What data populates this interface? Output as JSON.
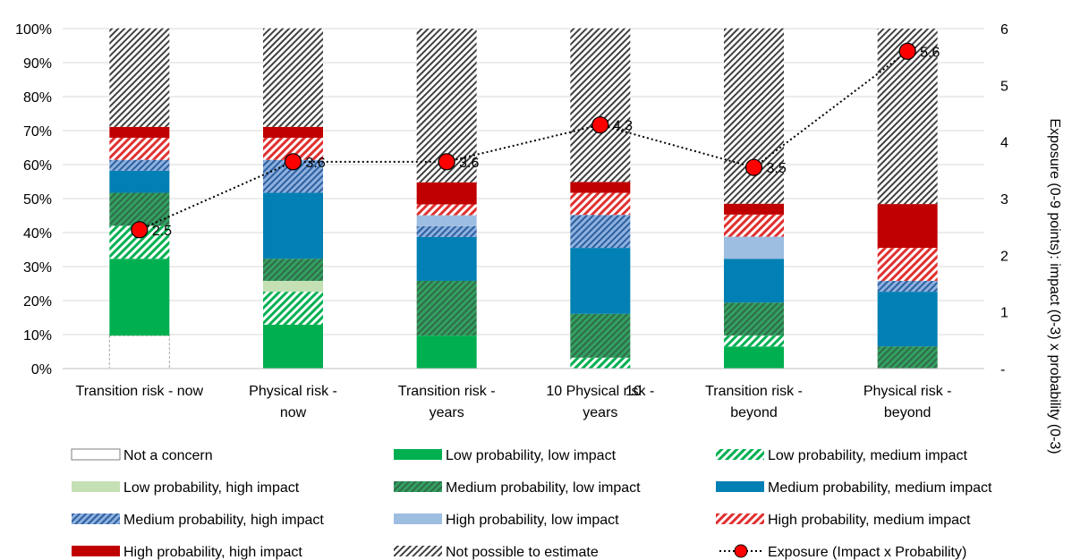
{
  "chart_data": {
    "type": "bar",
    "stacked": true,
    "categories": [
      [
        "Transition risk - now"
      ],
      [
        "Physical risk -",
        "now"
      ],
      [
        "Transition risk -",
        "years"
      ],
      [
        "10 Physical risk -",
        "years"
      ],
      [
        "Transition risk -",
        "beyond"
      ],
      [
        "Physical risk -",
        "beyond"
      ]
    ],
    "stray_label": "10",
    "ylim_left": [
      0,
      100
    ],
    "left_ticks": [
      "0%",
      "10%",
      "20%",
      "30%",
      "40%",
      "50%",
      "60%",
      "70%",
      "80%",
      "90%",
      "100%"
    ],
    "ylim_right": [
      0,
      6
    ],
    "right_ticks": [
      "-",
      "1",
      "2",
      "3",
      "4",
      "5",
      "6"
    ],
    "ylabel_right": "Exposure (0-9 points): impact (0-3) x probability (0-3)",
    "gridlines": true,
    "legend_position": "bottom",
    "series": [
      {
        "name": "Not a concern",
        "color": "#ffffff",
        "pattern": "none",
        "values": [
          9.7,
          0,
          0,
          0,
          0,
          0
        ]
      },
      {
        "name": "Low probability, low impact",
        "color": "#00b050",
        "pattern": "solid",
        "values": [
          22.6,
          12.9,
          9.7,
          0,
          6.5,
          0
        ]
      },
      {
        "name": "Low probability, medium impact",
        "color": "#00b050",
        "pattern": "hatch",
        "values": [
          9.7,
          9.7,
          0,
          3.2,
          3.2,
          0
        ]
      },
      {
        "name": "Low probability, high impact",
        "color": "#c5e0b4",
        "pattern": "solid",
        "values": [
          0,
          3.2,
          0,
          0,
          0,
          0
        ]
      },
      {
        "name": "Medium probability, low impact",
        "color": "#33a060",
        "pattern": "hatch-dense",
        "values": [
          9.7,
          6.5,
          16.1,
          12.9,
          9.7,
          6.5
        ]
      },
      {
        "name": "Medium probability, medium impact",
        "color": "#0080b4",
        "pattern": "solid",
        "values": [
          6.5,
          19.4,
          12.9,
          19.4,
          12.9,
          16.1
        ]
      },
      {
        "name": "Medium probability, high impact",
        "color": "#4a86c6",
        "pattern": "hatch-dense",
        "values": [
          3.2,
          9.7,
          3.2,
          9.7,
          0,
          3.2
        ]
      },
      {
        "name": "High probability, low impact",
        "color": "#9dbde1",
        "pattern": "solid",
        "values": [
          0,
          0,
          3.2,
          0,
          6.5,
          0
        ]
      },
      {
        "name": "High probability, medium impact",
        "color": "#e03030",
        "pattern": "hatch",
        "values": [
          6.5,
          6.5,
          3.2,
          6.5,
          6.5,
          9.7
        ]
      },
      {
        "name": "High probability, high impact",
        "color": "#c00000",
        "pattern": "solid",
        "values": [
          3.2,
          3.2,
          6.5,
          3.2,
          3.2,
          12.9
        ]
      },
      {
        "name": "Not possible to estimate",
        "color": "#404040",
        "pattern": "hatch-dark",
        "values": [
          29.0,
          29.0,
          45.2,
          45.2,
          51.6,
          51.6
        ]
      }
    ],
    "line_series": {
      "name": "Exposure (Impact x Probability)",
      "axis": "right",
      "color": "#ff0000",
      "values": [
        2.45,
        3.65,
        3.65,
        4.3,
        3.55,
        5.6
      ],
      "labels": [
        "2.5",
        "3.6",
        "3.6",
        "4.3",
        "3.5",
        "5.6"
      ]
    }
  }
}
